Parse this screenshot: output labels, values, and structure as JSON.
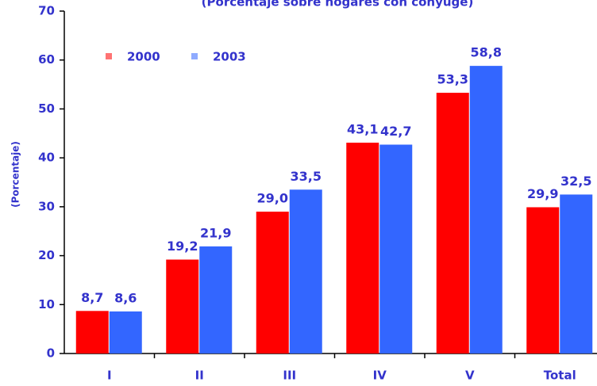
{
  "chart_data": {
    "type": "bar",
    "title": "(Porcentaje sobre hogares con cónyuge)",
    "y_label": "(Porcentaje)",
    "categories": [
      "I",
      "II",
      "III",
      "IV",
      "V",
      "Total"
    ],
    "series": [
      {
        "name": "2000",
        "color": "#ff0000",
        "values": [
          8.7,
          19.2,
          29.0,
          43.1,
          53.3,
          29.9
        ],
        "value_labels": [
          "8,7",
          "19,2",
          "29,0",
          "43,1",
          "53,3",
          "29,9"
        ]
      },
      {
        "name": "2003",
        "color": "#3366ff",
        "values": [
          8.6,
          21.9,
          33.5,
          42.7,
          58.8,
          32.5
        ],
        "value_labels": [
          "8,6",
          "21,9",
          "33,5",
          "42,7",
          "58,8",
          "32,5"
        ]
      }
    ],
    "ylim": [
      0,
      70
    ],
    "yticks": [
      0,
      10,
      20,
      30,
      40,
      50,
      60,
      70
    ],
    "grid": false,
    "legend": "top-left"
  }
}
